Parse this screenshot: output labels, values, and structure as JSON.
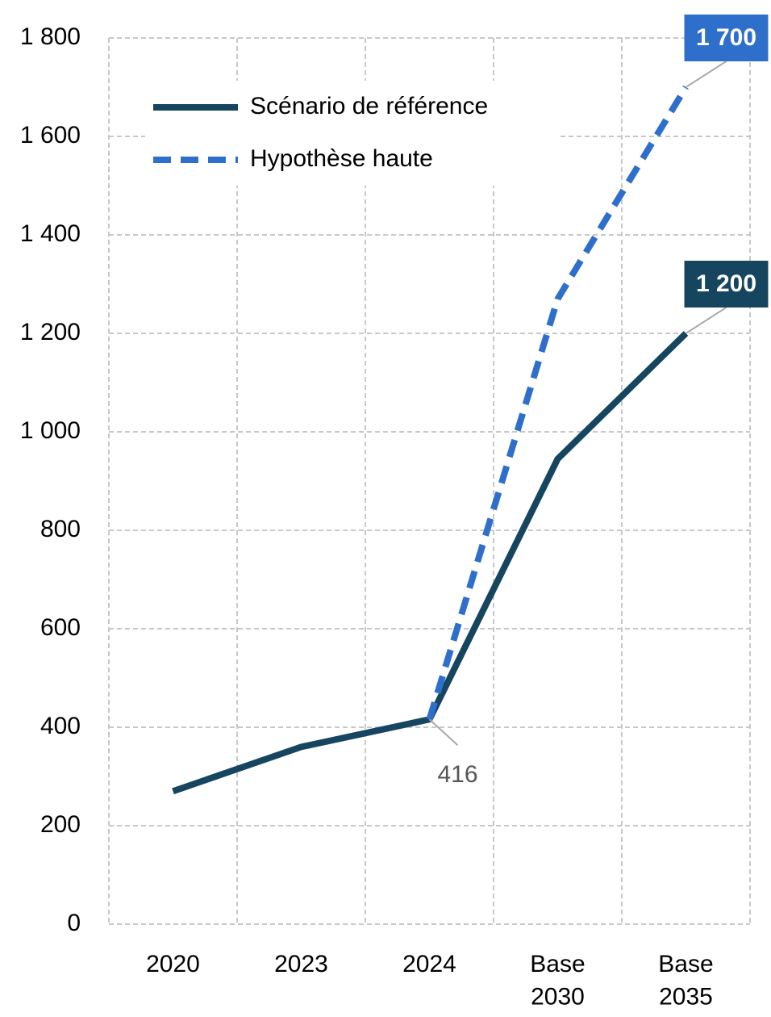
{
  "chart_data": {
    "type": "line",
    "categories": [
      "2020",
      "2023",
      "2024",
      "Base\n2030",
      "Base\n2035"
    ],
    "series": [
      {
        "name": "Scénario de référence",
        "color": "#16465f",
        "dash": false,
        "values": [
          270,
          360,
          416,
          945,
          1200
        ],
        "value_labels": [
          null,
          null,
          "416",
          null,
          "1 200"
        ]
      },
      {
        "name": "Hypothèse haute",
        "color": "#2f6fcc",
        "dash": true,
        "values": [
          null,
          null,
          416,
          1270,
          1700
        ],
        "value_labels": [
          null,
          null,
          null,
          null,
          "1 700"
        ]
      }
    ],
    "ylim": [
      0,
      1800
    ],
    "yticks": [
      0,
      200,
      400,
      600,
      800,
      {
        "value": 1000,
        "label": "1 000"
      },
      {
        "value": 1200,
        "label": "1 200"
      },
      {
        "value": 1400,
        "label": "1 400"
      },
      {
        "value": 1600,
        "label": "1 600"
      },
      {
        "value": 1800,
        "label": "1 800"
      }
    ],
    "grid": true,
    "legend": "upper left"
  }
}
